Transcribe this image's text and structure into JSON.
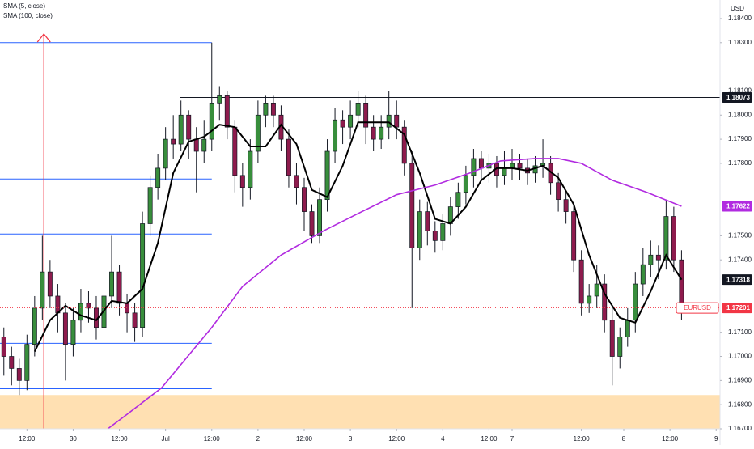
{
  "chart_data": {
    "type": "candlestick",
    "legend": [
      "SMA (5, close)",
      "SMA (100, close)"
    ],
    "currency": "USD",
    "xlim": [
      -0.5,
      93
    ],
    "ylim": [
      1.167,
      1.18477
    ],
    "xticks": [
      {
        "value": 3,
        "label": "12:00"
      },
      {
        "value": 9,
        "label": "30"
      },
      {
        "value": 15,
        "label": "12:00"
      },
      {
        "value": 21,
        "label": "Jul"
      },
      {
        "value": 27,
        "label": "12:00"
      },
      {
        "value": 33,
        "label": "2"
      },
      {
        "value": 39,
        "label": "12:00"
      },
      {
        "value": 45,
        "label": "3"
      },
      {
        "value": 51,
        "label": "12:00"
      },
      {
        "value": 57,
        "label": "4"
      },
      {
        "value": 63,
        "label": "12:00"
      },
      {
        "value": 66,
        "label": "7"
      },
      {
        "value": 75,
        "label": "12:00"
      },
      {
        "value": 80.5,
        "label": "8"
      },
      {
        "value": 86.5,
        "label": "12:00"
      },
      {
        "value": 92.5,
        "label": "9"
      }
    ],
    "yticks": [
      {
        "value": 1.184,
        "label": "1.18400"
      },
      {
        "value": 1.183,
        "label": "1.18300"
      },
      {
        "value": 1.181,
        "label": "1.18100"
      },
      {
        "value": 1.18,
        "label": "1.18000"
      },
      {
        "value": 1.179,
        "label": "1.17900"
      },
      {
        "value": 1.178,
        "label": "1.17800"
      },
      {
        "value": 1.175,
        "label": "1.17500"
      },
      {
        "value": 1.174,
        "label": "1.17400"
      },
      {
        "value": 1.171,
        "label": "1.17100"
      },
      {
        "value": 1.17,
        "label": "1.17000"
      },
      {
        "value": 1.169,
        "label": "1.16900"
      },
      {
        "value": 1.168,
        "label": "1.16800"
      },
      {
        "value": 1.167,
        "label": "1.16700"
      }
    ],
    "up_color": "#388e3c",
    "down_color": "#8e1b4d",
    "candles": {
      "open": [
        1.1708,
        1.17,
        1.1695,
        1.169,
        1.1705,
        1.172,
        1.1735,
        1.1725,
        1.1718,
        1.1705,
        1.1715,
        1.1722,
        1.172,
        1.1712,
        1.1725,
        1.1735,
        1.1722,
        1.1718,
        1.1712,
        1.1755,
        1.177,
        1.1778,
        1.179,
        1.1788,
        1.18,
        1.179,
        1.1785,
        1.179,
        1.1805,
        1.1808,
        1.1795,
        1.1775,
        1.177,
        1.1785,
        1.18,
        1.1805,
        1.18,
        1.179,
        1.1775,
        1.177,
        1.176,
        1.175,
        1.1765,
        1.1785,
        1.1798,
        1.1795,
        1.18,
        1.1805,
        1.1795,
        1.179,
        1.1795,
        1.18,
        1.1795,
        1.178,
        1.1745,
        1.176,
        1.1752,
        1.1748,
        1.1755,
        1.1762,
        1.1768,
        1.1775,
        1.1782,
        1.1778,
        1.178,
        1.1775,
        1.1778,
        1.178,
        1.1778,
        1.1776,
        1.1779,
        1.178,
        1.1772,
        1.1765,
        1.176,
        1.174,
        1.1722,
        1.1725,
        1.173,
        1.1715,
        1.17,
        1.1708,
        1.1715,
        1.173,
        1.1738,
        1.1742,
        1.174,
        1.1758,
        1.174
      ],
      "high": [
        1.1712,
        1.1704,
        1.1699,
        1.1709,
        1.1725,
        1.175,
        1.174,
        1.173,
        1.1722,
        1.172,
        1.1728,
        1.1727,
        1.1725,
        1.1732,
        1.175,
        1.1738,
        1.1726,
        1.1722,
        1.176,
        1.1775,
        1.1784,
        1.1795,
        1.18,
        1.1806,
        1.1802,
        1.1795,
        1.1798,
        1.183,
        1.1812,
        1.181,
        1.1798,
        1.178,
        1.179,
        1.1806,
        1.1808,
        1.1808,
        1.1804,
        1.1794,
        1.178,
        1.1774,
        1.1763,
        1.177,
        1.179,
        1.1803,
        1.1802,
        1.1806,
        1.181,
        1.1808,
        1.18,
        1.18,
        1.181,
        1.1806,
        1.1798,
        1.1785,
        1.1765,
        1.1764,
        1.1756,
        1.1759,
        1.1766,
        1.1772,
        1.1779,
        1.1786,
        1.1785,
        1.1784,
        1.1783,
        1.1785,
        1.1786,
        1.1784,
        1.1782,
        1.1783,
        1.179,
        1.1783,
        1.1776,
        1.1768,
        1.1763,
        1.1744,
        1.173,
        1.1738,
        1.1734,
        1.172,
        1.1712,
        1.172,
        1.1735,
        1.1745,
        1.1748,
        1.1746,
        1.1765,
        1.1762,
        1.1744
      ],
      "low": [
        1.1692,
        1.1688,
        1.1684,
        1.1686,
        1.17,
        1.1715,
        1.172,
        1.171,
        1.169,
        1.17,
        1.171,
        1.1714,
        1.1707,
        1.1708,
        1.172,
        1.1717,
        1.171,
        1.1706,
        1.1708,
        1.175,
        1.1765,
        1.1773,
        1.1782,
        1.1785,
        1.1782,
        1.1768,
        1.178,
        1.1785,
        1.1798,
        1.179,
        1.1768,
        1.1762,
        1.1765,
        1.178,
        1.1795,
        1.1795,
        1.1785,
        1.177,
        1.1763,
        1.1752,
        1.1747,
        1.1747,
        1.176,
        1.178,
        1.1788,
        1.179,
        1.1795,
        1.1788,
        1.1785,
        1.1786,
        1.179,
        1.179,
        1.1775,
        1.172,
        1.174,
        1.1746,
        1.1743,
        1.1744,
        1.175,
        1.1757,
        1.1763,
        1.177,
        1.1773,
        1.1772,
        1.177,
        1.1771,
        1.1773,
        1.1773,
        1.1771,
        1.1772,
        1.1774,
        1.1767,
        1.176,
        1.1755,
        1.1735,
        1.1717,
        1.1718,
        1.172,
        1.171,
        1.1688,
        1.1695,
        1.1704,
        1.171,
        1.1725,
        1.1733,
        1.1732,
        1.1736,
        1.1735,
        1.1715
      ],
      "close": [
        1.17,
        1.1695,
        1.169,
        1.1705,
        1.172,
        1.1735,
        1.1725,
        1.1718,
        1.1705,
        1.1715,
        1.1722,
        1.172,
        1.1712,
        1.1725,
        1.1735,
        1.1722,
        1.1718,
        1.1712,
        1.1755,
        1.177,
        1.1778,
        1.179,
        1.1788,
        1.18,
        1.179,
        1.1785,
        1.179,
        1.1805,
        1.1808,
        1.1795,
        1.1775,
        1.177,
        1.1785,
        1.18,
        1.1805,
        1.18,
        1.179,
        1.1775,
        1.177,
        1.176,
        1.175,
        1.1765,
        1.1785,
        1.1798,
        1.1795,
        1.18,
        1.1805,
        1.1795,
        1.179,
        1.1795,
        1.18,
        1.1795,
        1.178,
        1.1745,
        1.176,
        1.1752,
        1.1748,
        1.1755,
        1.1762,
        1.1768,
        1.1775,
        1.1782,
        1.1778,
        1.178,
        1.1775,
        1.1778,
        1.178,
        1.1778,
        1.1776,
        1.1779,
        1.178,
        1.1772,
        1.1765,
        1.176,
        1.174,
        1.1722,
        1.1725,
        1.173,
        1.1715,
        1.17,
        1.1708,
        1.1715,
        1.173,
        1.1738,
        1.1742,
        1.174,
        1.1758,
        1.174,
        1.17201
      ]
    },
    "series": [
      {
        "name": "SMA (5, close)",
        "color": "#000000",
        "x": [
          4,
          6,
          8,
          10,
          12,
          14,
          16,
          18,
          20,
          22,
          24,
          26,
          28,
          30,
          32,
          34,
          36,
          38,
          40,
          42,
          44,
          46,
          48,
          50,
          52,
          54,
          56,
          58,
          60,
          62,
          64,
          66,
          68,
          70,
          72,
          74,
          76,
          78,
          80,
          82,
          84,
          86,
          88
        ],
        "values": [
          1.1702,
          1.1715,
          1.1721,
          1.1717,
          1.1715,
          1.1723,
          1.1722,
          1.1728,
          1.1747,
          1.1776,
          1.1789,
          1.1791,
          1.1796,
          1.1795,
          1.1787,
          1.1787,
          1.1796,
          1.1788,
          1.1769,
          1.1766,
          1.1779,
          1.1797,
          1.1797,
          1.1797,
          1.1792,
          1.1776,
          1.1757,
          1.1755,
          1.1762,
          1.1773,
          1.1778,
          1.1778,
          1.1777,
          1.1779,
          1.1774,
          1.1763,
          1.1742,
          1.1726,
          1.1716,
          1.1714,
          1.1727,
          1.1742,
          1.17318
        ]
      },
      {
        "name": "SMA (100, close)",
        "color": "#b12be0",
        "x": [
          13.5,
          16,
          20.5,
          27,
          31,
          36,
          41.5,
          46.5,
          51,
          56,
          60.5,
          64.5,
          69,
          72,
          75,
          79,
          83.5,
          88
        ],
        "values": [
          1.167,
          1.1676,
          1.1687,
          1.1712,
          1.1729,
          1.1742,
          1.1752,
          1.176,
          1.1767,
          1.1771,
          1.1776,
          1.1781,
          1.1782,
          1.1782,
          1.178,
          1.1773,
          1.1768,
          1.17622
        ]
      }
    ],
    "resistance": {
      "value": 1.18073,
      "from": 22.9,
      "color": "#131722"
    },
    "levels": {
      "values": [
        1.183,
        1.17735,
        1.17507,
        1.17054,
        1.16866
      ],
      "from": -0.5,
      "to": 27,
      "color": "#2962ff"
    },
    "zone": {
      "top": 1.1684,
      "color": "#ffe0b2"
    },
    "vline": {
      "x": 5.2,
      "color": "#f23645"
    },
    "price_markers": [
      {
        "value": 1.18073,
        "color": "#131722"
      },
      {
        "value": 1.17622,
        "color": "#b12be0"
      },
      {
        "value": 1.17318,
        "color": "#131722"
      },
      {
        "label": "EURUSD",
        "value": 1.17201,
        "color": "#f23645"
      }
    ]
  }
}
